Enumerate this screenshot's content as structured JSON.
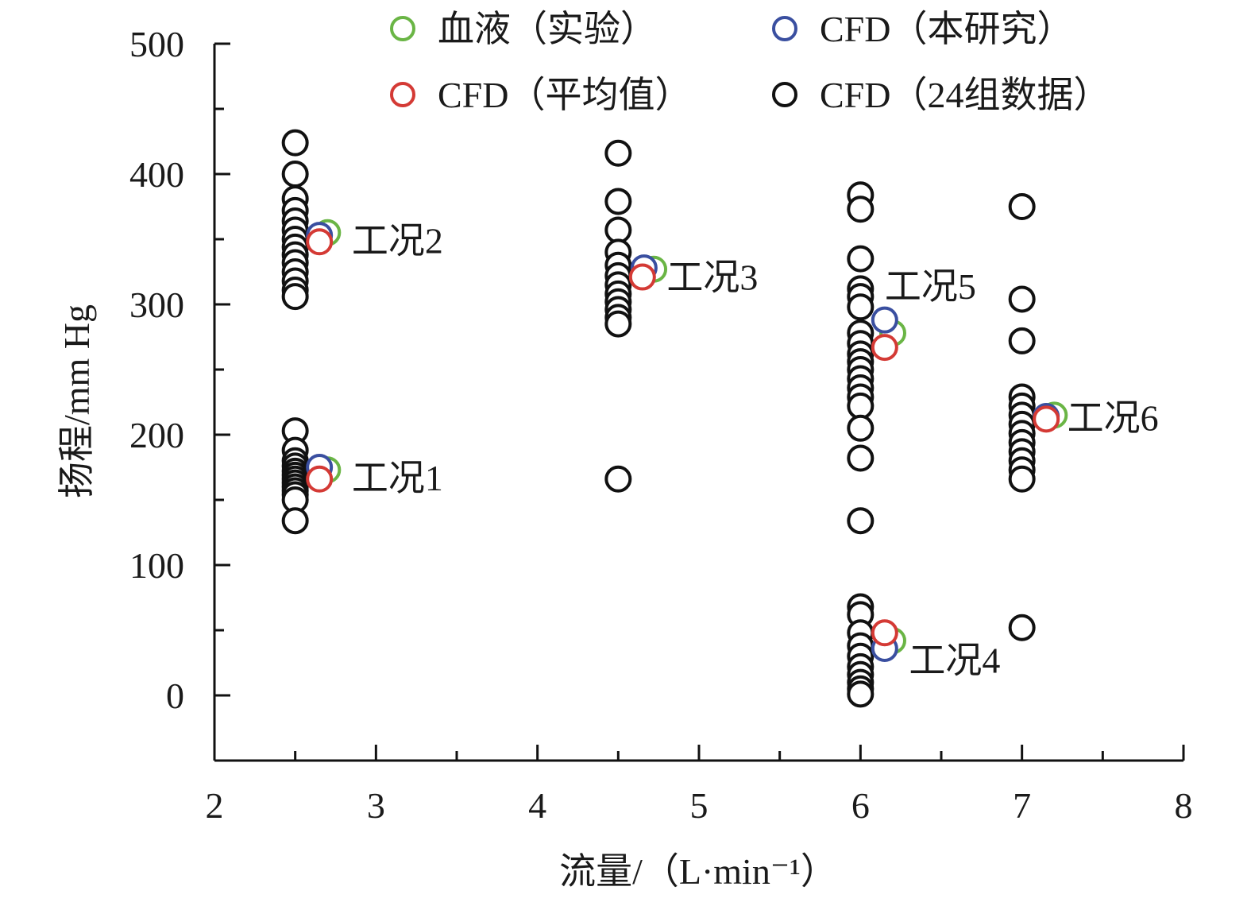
{
  "chart_data": {
    "type": "scatter",
    "xlabel": "流量/（L·min⁻¹）",
    "ylabel": "扬程/mm Hg",
    "xlim": [
      2,
      8
    ],
    "ylim": [
      -50,
      500
    ],
    "xticks": [
      2,
      3,
      4,
      5,
      6,
      7,
      8
    ],
    "x_tick_labels": [
      "2",
      "3",
      "4",
      "5",
      "6",
      "7",
      "8"
    ],
    "yticks": [
      0,
      100,
      200,
      300,
      400,
      500
    ],
    "y_tick_labels": [
      "0",
      "100",
      "200",
      "300",
      "400",
      "500"
    ],
    "grid": false,
    "legend_position": "top",
    "series": [
      {
        "name": "血液（实验）",
        "color": "#6ab545",
        "points": [
          {
            "x": 2.7,
            "y": 173
          },
          {
            "x": 2.7,
            "y": 355
          },
          {
            "x": 4.72,
            "y": 327
          },
          {
            "x": 6.2,
            "y": 42
          },
          {
            "x": 6.2,
            "y": 278
          },
          {
            "x": 7.2,
            "y": 215
          }
        ]
      },
      {
        "name": "CFD（本研究）",
        "color": "#3a4fa0",
        "points": [
          {
            "x": 2.65,
            "y": 175
          },
          {
            "x": 2.65,
            "y": 353
          },
          {
            "x": 4.66,
            "y": 328
          },
          {
            "x": 6.15,
            "y": 36
          },
          {
            "x": 6.15,
            "y": 288
          },
          {
            "x": 7.15,
            "y": 214
          }
        ]
      },
      {
        "name": "CFD（平均值）",
        "color": "#d43a35",
        "points": [
          {
            "x": 2.65,
            "y": 166
          },
          {
            "x": 2.65,
            "y": 348
          },
          {
            "x": 4.65,
            "y": 321
          },
          {
            "x": 6.15,
            "y": 48
          },
          {
            "x": 6.15,
            "y": 267
          },
          {
            "x": 7.15,
            "y": 212
          }
        ]
      },
      {
        "name": "CFD（24组数据）",
        "color": "#111111",
        "points": [
          {
            "x": 2.5,
            "y": 203
          },
          {
            "x": 2.5,
            "y": 188
          },
          {
            "x": 2.5,
            "y": 180
          },
          {
            "x": 2.5,
            "y": 176
          },
          {
            "x": 2.5,
            "y": 172
          },
          {
            "x": 2.5,
            "y": 169
          },
          {
            "x": 2.5,
            "y": 166
          },
          {
            "x": 2.5,
            "y": 163
          },
          {
            "x": 2.5,
            "y": 160
          },
          {
            "x": 2.5,
            "y": 157
          },
          {
            "x": 2.5,
            "y": 154
          },
          {
            "x": 2.5,
            "y": 150
          },
          {
            "x": 2.5,
            "y": 134
          },
          {
            "x": 2.5,
            "y": 424
          },
          {
            "x": 2.5,
            "y": 400
          },
          {
            "x": 2.5,
            "y": 381
          },
          {
            "x": 2.5,
            "y": 372
          },
          {
            "x": 2.5,
            "y": 364
          },
          {
            "x": 2.5,
            "y": 357
          },
          {
            "x": 2.5,
            "y": 350
          },
          {
            "x": 2.5,
            "y": 344
          },
          {
            "x": 2.5,
            "y": 338
          },
          {
            "x": 2.5,
            "y": 332
          },
          {
            "x": 2.5,
            "y": 325
          },
          {
            "x": 2.5,
            "y": 318
          },
          {
            "x": 2.5,
            "y": 311
          },
          {
            "x": 2.5,
            "y": 306
          },
          {
            "x": 4.5,
            "y": 416
          },
          {
            "x": 4.5,
            "y": 379
          },
          {
            "x": 4.5,
            "y": 357
          },
          {
            "x": 4.5,
            "y": 340
          },
          {
            "x": 4.5,
            "y": 330
          },
          {
            "x": 4.5,
            "y": 322
          },
          {
            "x": 4.5,
            "y": 315
          },
          {
            "x": 4.5,
            "y": 308
          },
          {
            "x": 4.5,
            "y": 302
          },
          {
            "x": 4.5,
            "y": 296
          },
          {
            "x": 4.5,
            "y": 290
          },
          {
            "x": 4.5,
            "y": 285
          },
          {
            "x": 4.5,
            "y": 166
          },
          {
            "x": 6.0,
            "y": 384
          },
          {
            "x": 6.0,
            "y": 373
          },
          {
            "x": 6.0,
            "y": 335
          },
          {
            "x": 6.0,
            "y": 312
          },
          {
            "x": 6.0,
            "y": 306
          },
          {
            "x": 6.0,
            "y": 298
          },
          {
            "x": 6.0,
            "y": 278
          },
          {
            "x": 6.0,
            "y": 270
          },
          {
            "x": 6.0,
            "y": 262
          },
          {
            "x": 6.0,
            "y": 256
          },
          {
            "x": 6.0,
            "y": 250
          },
          {
            "x": 6.0,
            "y": 243
          },
          {
            "x": 6.0,
            "y": 236
          },
          {
            "x": 6.0,
            "y": 229
          },
          {
            "x": 6.0,
            "y": 222
          },
          {
            "x": 6.0,
            "y": 205
          },
          {
            "x": 6.0,
            "y": 182
          },
          {
            "x": 6.0,
            "y": 134
          },
          {
            "x": 6.0,
            "y": 68
          },
          {
            "x": 6.0,
            "y": 62
          },
          {
            "x": 6.0,
            "y": 48
          },
          {
            "x": 6.0,
            "y": 38
          },
          {
            "x": 6.0,
            "y": 30
          },
          {
            "x": 6.0,
            "y": 22
          },
          {
            "x": 6.0,
            "y": 16
          },
          {
            "x": 6.0,
            "y": 10
          },
          {
            "x": 6.0,
            "y": 5
          },
          {
            "x": 6.0,
            "y": 1
          },
          {
            "x": 7.0,
            "y": 375
          },
          {
            "x": 7.0,
            "y": 304
          },
          {
            "x": 7.0,
            "y": 272
          },
          {
            "x": 7.0,
            "y": 229
          },
          {
            "x": 7.0,
            "y": 222
          },
          {
            "x": 7.0,
            "y": 215
          },
          {
            "x": 7.0,
            "y": 208
          },
          {
            "x": 7.0,
            "y": 201
          },
          {
            "x": 7.0,
            "y": 194
          },
          {
            "x": 7.0,
            "y": 187
          },
          {
            "x": 7.0,
            "y": 180
          },
          {
            "x": 7.0,
            "y": 173
          },
          {
            "x": 7.0,
            "y": 166
          },
          {
            "x": 7.0,
            "y": 52
          }
        ]
      }
    ],
    "annotations": [
      {
        "text": "工况1",
        "x": 2.85,
        "y": 167
      },
      {
        "text": "工况2",
        "x": 2.85,
        "y": 349
      },
      {
        "text": "工况3",
        "x": 4.8,
        "y": 321
      },
      {
        "text": "工况4",
        "x": 6.3,
        "y": 27
      },
      {
        "text": "工况5",
        "x": 6.15,
        "y": 314
      },
      {
        "text": "工况6",
        "x": 7.28,
        "y": 213
      }
    ]
  }
}
